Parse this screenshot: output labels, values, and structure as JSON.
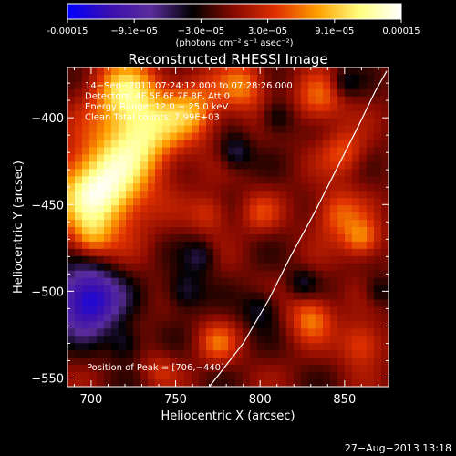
{
  "colorbar": {
    "ticks": [
      "-0.00015",
      "−9.1e−05",
      "−3.0e−05",
      "3.0e−05",
      "9.1e−05",
      "0.00015"
    ],
    "unit_label": "(photons cm⁻² s⁻¹ asec⁻²)",
    "colors": [
      "#0000ff",
      "#3a0fb0",
      "#5a2c9c",
      "#000000",
      "#8a0a00",
      "#e03000",
      "#ffa000",
      "#ffff80",
      "#ffffff"
    ]
  },
  "chart_data": {
    "type": "heatmap",
    "title": "Reconstructed RHESSI Image",
    "xlabel": "Heliocentric X (arcsec)",
    "ylabel": "Heliocentric Y (arcsec)",
    "xlim": [
      686,
      876
    ],
    "ylim": [
      -555,
      -371
    ],
    "xticks": [
      700,
      750,
      800,
      850
    ],
    "yticks": [
      -400,
      -450,
      -500,
      -550
    ],
    "value_range": [
      -0.00015,
      0.00015
    ],
    "info_lines": [
      "14−Sep−2011 07:24:12.000 to 07:28:26.000",
      "Detectors: 4F 5F 6F 7F 8F, Att 0",
      "Energy Range: 12.0 − 25.0 keV",
      "Clean    Total counts: 7.99E+03"
    ],
    "peak_label": "Position of Peak = [706,−440]",
    "peak": [
      706,
      -440
    ],
    "limb_curve": [
      [
        770,
        -555
      ],
      [
        790,
        -530
      ],
      [
        805,
        -505
      ],
      [
        818,
        -480
      ],
      [
        832,
        -455
      ],
      [
        845,
        -430
      ],
      [
        858,
        -405
      ],
      [
        868,
        -385
      ],
      [
        875,
        -373
      ]
    ],
    "sources": [
      {
        "x": 705,
        "y": -442,
        "sigma": 18,
        "amp": 1.0
      },
      {
        "x": 730,
        "y": -410,
        "sigma": 16,
        "amp": 0.7
      },
      {
        "x": 720,
        "y": -385,
        "sigma": 14,
        "amp": 0.6
      },
      {
        "x": 760,
        "y": -395,
        "sigma": 12,
        "amp": 0.5
      },
      {
        "x": 790,
        "y": -382,
        "sigma": 10,
        "amp": 0.45
      },
      {
        "x": 835,
        "y": -390,
        "sigma": 10,
        "amp": 0.4
      },
      {
        "x": 850,
        "y": -420,
        "sigma": 9,
        "amp": 0.35
      },
      {
        "x": 845,
        "y": -455,
        "sigma": 10,
        "amp": 0.4
      },
      {
        "x": 860,
        "y": -470,
        "sigma": 8,
        "amp": 0.5
      },
      {
        "x": 830,
        "y": -515,
        "sigma": 9,
        "amp": 0.45
      },
      {
        "x": 860,
        "y": -530,
        "sigma": 9,
        "amp": 0.4
      },
      {
        "x": 770,
        "y": -455,
        "sigma": 8,
        "amp": 0.3
      },
      {
        "x": 800,
        "y": -455,
        "sigma": 8,
        "amp": 0.25
      },
      {
        "x": 740,
        "y": -545,
        "sigma": 7,
        "amp": 0.2
      },
      {
        "x": 775,
        "y": -530,
        "sigma": 8,
        "amp": 0.35
      },
      {
        "x": 700,
        "y": -470,
        "sigma": 8,
        "amp": 0.35
      },
      {
        "x": 698,
        "y": -505,
        "sigma": 14,
        "amp": -0.9
      },
      {
        "x": 785,
        "y": -420,
        "sigma": 7,
        "amp": -0.35
      },
      {
        "x": 810,
        "y": -400,
        "sigma": 7,
        "amp": -0.3
      },
      {
        "x": 755,
        "y": -500,
        "sigma": 8,
        "amp": -0.35
      },
      {
        "x": 800,
        "y": -510,
        "sigma": 8,
        "amp": -0.3
      },
      {
        "x": 825,
        "y": -495,
        "sigma": 6,
        "amp": -0.25
      },
      {
        "x": 765,
        "y": -480,
        "sigma": 7,
        "amp": -0.3
      },
      {
        "x": 850,
        "y": -380,
        "sigma": 6,
        "amp": -0.25
      },
      {
        "x": 720,
        "y": -530,
        "sigma": 7,
        "amp": -0.3
      },
      {
        "x": 870,
        "y": -500,
        "sigma": 6,
        "amp": -0.25
      }
    ]
  },
  "footer": {
    "timestamp": "27−Aug−2013 13:18"
  }
}
